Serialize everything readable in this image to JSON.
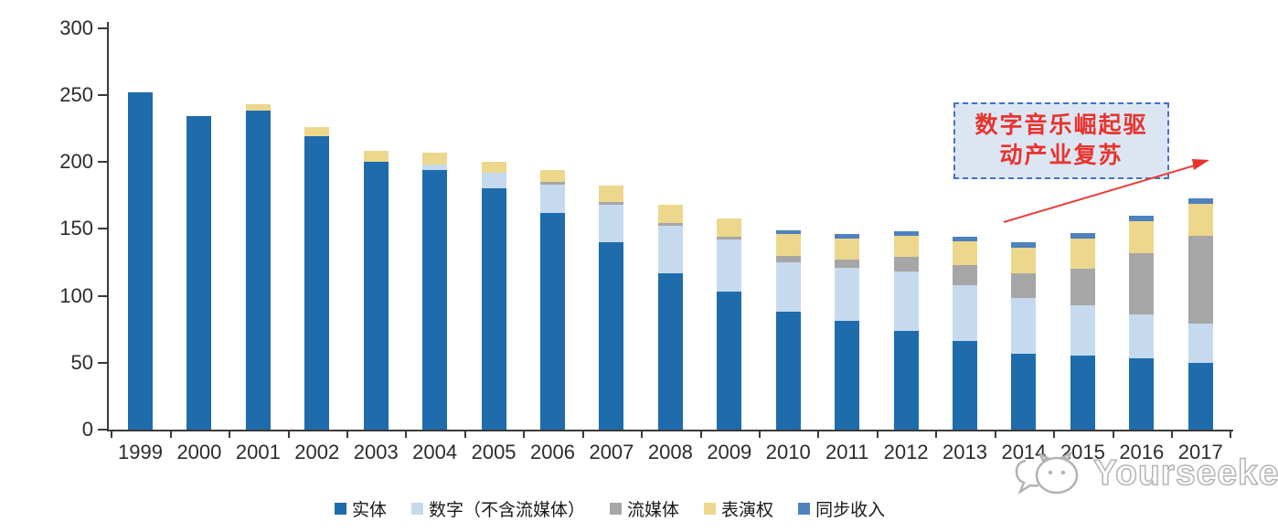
{
  "chart_data": {
    "type": "bar",
    "stacked": true,
    "title": "",
    "xlabel": "",
    "ylabel": "",
    "ylim": [
      0,
      300
    ],
    "yticks": [
      0,
      50,
      100,
      150,
      200,
      250,
      300
    ],
    "grid": false,
    "legend_position": "bottom",
    "categories": [
      "1999",
      "2000",
      "2001",
      "2002",
      "2003",
      "2004",
      "2005",
      "2006",
      "2007",
      "2008",
      "2009",
      "2010",
      "2011",
      "2012",
      "2013",
      "2014",
      "2015",
      "2016",
      "2017"
    ],
    "series": [
      {
        "key": "physical",
        "name": "实体",
        "color": "#1e6cac",
        "values": [
          252,
          234,
          238,
          219,
          200,
          194,
          180,
          162,
          140,
          117,
          103,
          88,
          81,
          74,
          66,
          57,
          55,
          53,
          50
        ]
      },
      {
        "key": "digital",
        "name": "数字（不含流媒体）",
        "color": "#c6daef",
        "values": [
          0,
          0,
          0,
          0,
          0,
          4,
          12,
          21,
          28,
          35,
          39,
          37,
          40,
          44,
          42,
          41,
          38,
          33,
          29
        ]
      },
      {
        "key": "streaming",
        "name": "流媒体",
        "color": "#a6a6a6",
        "values": [
          0,
          0,
          0,
          0,
          0,
          0,
          0,
          2,
          2,
          2,
          2,
          5,
          6,
          11,
          15,
          19,
          27,
          46,
          66
        ]
      },
      {
        "key": "performance",
        "name": "表演权",
        "color": "#ecd78d",
        "values": [
          0,
          0,
          5,
          7,
          8,
          9,
          8,
          9,
          12,
          14,
          14,
          16,
          16,
          16,
          18,
          19,
          23,
          24,
          24
        ]
      },
      {
        "key": "sync",
        "name": "同步收入",
        "color": "#4e81bd",
        "values": [
          0,
          0,
          0,
          0,
          0,
          0,
          0,
          0,
          0,
          0,
          0,
          3,
          3,
          3,
          3,
          4,
          4,
          4,
          4
        ]
      }
    ]
  },
  "annotation": {
    "line1": "数字音乐崛起驱",
    "line2": "动产业复苏",
    "text_color": "#e8332e",
    "box_fill": "#dce6f2",
    "box_border": "#4472c4"
  },
  "watermark": {
    "text": "Yourseeker"
  },
  "axis": {
    "color": "#3a3a3a"
  }
}
